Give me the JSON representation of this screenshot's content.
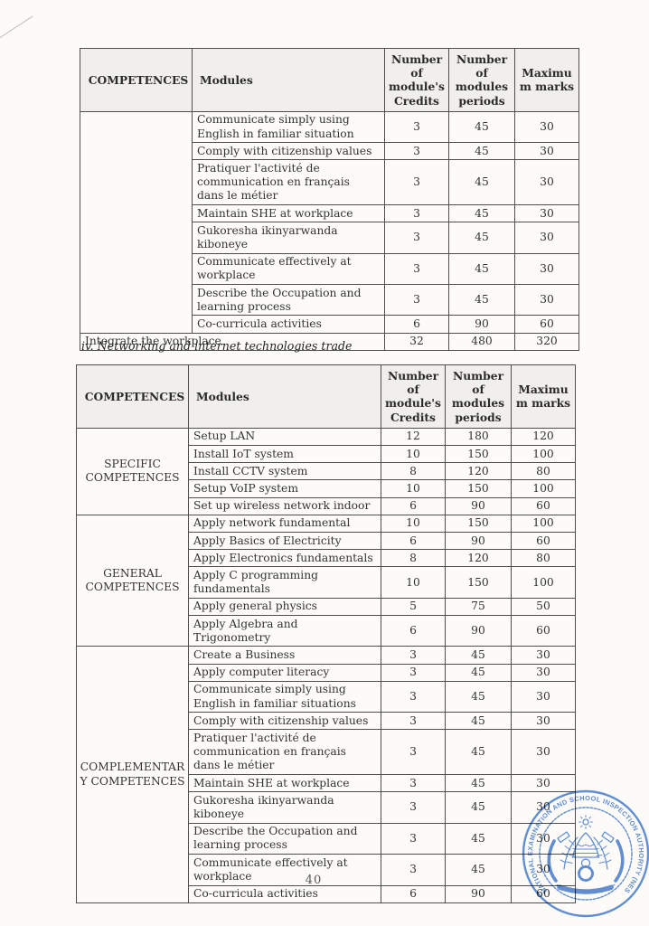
{
  "document": {
    "section_heading": "iv. Networking and internet technologies trade",
    "page_number": "40"
  },
  "table_headers": {
    "competences": "COMPETENCES",
    "modules": "Modules",
    "credits": "Number of module's Credits",
    "periods": "Number of modules periods",
    "marks": "Maximu m marks"
  },
  "table1": {
    "groups": [
      {
        "label": "",
        "rows": [
          {
            "module": "Communicate simply using English in familiar situation",
            "credits": "3",
            "periods": "45",
            "marks": "30"
          },
          {
            "module": "Comply with citizenship values",
            "credits": "3",
            "periods": "45",
            "marks": "30"
          },
          {
            "module": "Pratiquer l'activité de communication en  français dans le métier",
            "credits": "3",
            "periods": "45",
            "marks": "30"
          },
          {
            "module": "Maintain SHE at workplace",
            "credits": "3",
            "periods": "45",
            "marks": "30"
          },
          {
            "module": "Gukoresha ikinyarwanda kiboneye",
            "credits": "3",
            "periods": "45",
            "marks": "30"
          },
          {
            "module": "Communicate effectively at workplace",
            "credits": "3",
            "periods": "45",
            "marks": "30"
          },
          {
            "module": "Describe the Occupation and learning process",
            "credits": "3",
            "periods": "45",
            "marks": "30"
          },
          {
            "module": "Co-curricula activities",
            "credits": "6",
            "periods": "90",
            "marks": "60"
          }
        ]
      }
    ],
    "footer": {
      "label": "Integrate the workplace",
      "credits": "32",
      "periods": "480",
      "marks": "320"
    }
  },
  "table2": {
    "groups": [
      {
        "label": "SPECIFIC COMPETENCES",
        "rows": [
          {
            "module": "Setup LAN",
            "credits": "12",
            "periods": "180",
            "marks": "120"
          },
          {
            "module": "Install IoT system",
            "credits": "10",
            "periods": "150",
            "marks": "100"
          },
          {
            "module": "Install CCTV system",
            "credits": "8",
            "periods": "120",
            "marks": "80"
          },
          {
            "module": "Setup VoIP system",
            "credits": "10",
            "periods": "150",
            "marks": "100"
          },
          {
            "module": "Set up wireless network indoor",
            "credits": "6",
            "periods": "90",
            "marks": "60"
          }
        ]
      },
      {
        "label": "GENERAL COMPETENCES",
        "rows": [
          {
            "module": "Apply network fundamental",
            "credits": "10",
            "periods": "150",
            "marks": "100"
          },
          {
            "module": "Apply Basics of Electricity",
            "credits": "6",
            "periods": "90",
            "marks": "60"
          },
          {
            "module": "Apply Electronics fundamentals",
            "credits": "8",
            "periods": "120",
            "marks": "80"
          },
          {
            "module": "Apply C programming fundamentals",
            "credits": "10",
            "periods": "150",
            "marks": "100"
          },
          {
            "module": "Apply general physics",
            "credits": "5",
            "periods": "75",
            "marks": "50"
          },
          {
            "module": "Apply Algebra and Trigonometry",
            "credits": "6",
            "periods": "90",
            "marks": "60"
          }
        ]
      },
      {
        "label": "COMPLEMENTAR Y COMPETENCES",
        "rows": [
          {
            "module": "Create a Business",
            "credits": "3",
            "periods": "45",
            "marks": "30"
          },
          {
            "module": "Apply computer literacy",
            "credits": "3",
            "periods": "45",
            "marks": "30"
          },
          {
            "module": "Communicate simply using English in familiar situations",
            "credits": "3",
            "periods": "45",
            "marks": "30"
          },
          {
            "module": "Comply with citizenship values",
            "credits": "3",
            "periods": "45",
            "marks": "30"
          },
          {
            "module": "Pratiquer l'activité de communication en  français dans le métier",
            "credits": "3",
            "periods": "45",
            "marks": "30"
          },
          {
            "module": "Maintain SHE at workplace",
            "credits": "3",
            "periods": "45",
            "marks": "30"
          },
          {
            "module": "Gukoresha ikinyarwanda kiboneye",
            "credits": "3",
            "periods": "45",
            "marks": "30"
          },
          {
            "module": "Describe the Occupation and learning process",
            "credits": "3",
            "periods": "45",
            "marks": "30"
          },
          {
            "module": "Communicate effectively at workplace",
            "credits": "3",
            "periods": "45",
            "marks": "30"
          },
          {
            "module": "Co-curricula activities",
            "credits": "6",
            "periods": "90",
            "marks": "60"
          }
        ]
      }
    ]
  },
  "stamp": {
    "text": "NATIONAL EXAMINATION AND SCHOOL INSPECTION AUTHORITY (NESA)",
    "color": "#4d80d2"
  }
}
